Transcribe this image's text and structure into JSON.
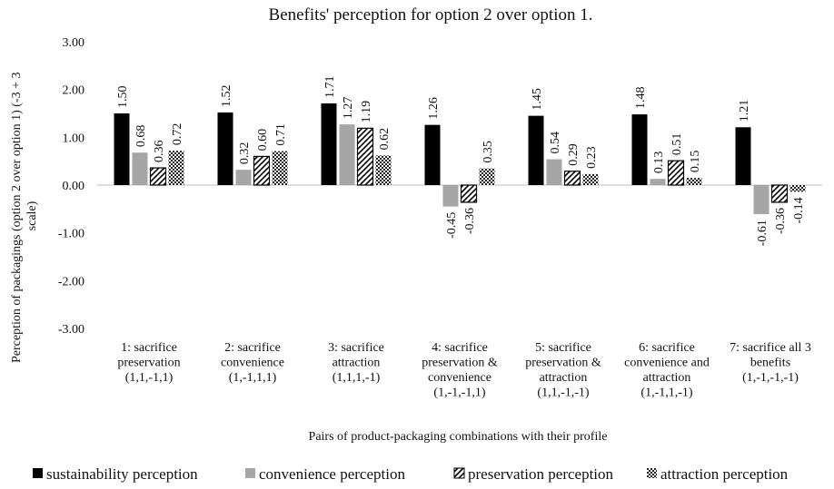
{
  "chart_data": {
    "type": "bar",
    "title": "Benefits' perception for option 2 over option 1.",
    "xlabel": "Pairs of product-packaging combinations with their profile",
    "ylabel": "Perception of packagings (option 2 over option 1) (-3 + 3 scale)",
    "ylim": [
      -3,
      3
    ],
    "yticks": [
      3,
      2,
      1,
      0,
      -1,
      -2,
      -3
    ],
    "ytick_labels": [
      "3.00",
      "2.00",
      "1.00",
      "0.00",
      "-1.00",
      "-2.00",
      "-3.00"
    ],
    "categories": [
      [
        "1: sacrifice",
        "preservation",
        "(1,1,-1,1)"
      ],
      [
        "2: sacrifice",
        "convenience",
        "(1,-1,1,1)"
      ],
      [
        "3: sacrifice",
        "attraction",
        "(1,1,1,-1)"
      ],
      [
        "4: sacrifice",
        "preservation &",
        "convenience",
        "(1,-1,-1,1)"
      ],
      [
        "5: sacrifice",
        "preservation &",
        "attraction",
        "(1,1,-1,-1)"
      ],
      [
        "6: sacrifice",
        "convenience and",
        "attraction",
        "(1,-1,1,-1)"
      ],
      [
        "7: sacrifice all 3",
        "benefits",
        "(1,-1,-1,-1)"
      ]
    ],
    "series": [
      {
        "name": "sustainability perception",
        "pattern": "solid-black",
        "values": [
          1.5,
          1.52,
          1.71,
          1.26,
          1.45,
          1.48,
          1.21
        ],
        "labels": [
          "1.50",
          "1.52",
          "1.71",
          "1.26",
          "1.45",
          "1.48",
          "1.21"
        ]
      },
      {
        "name": "convenience perception",
        "pattern": "solid-gray",
        "values": [
          0.68,
          0.32,
          1.27,
          -0.45,
          0.54,
          0.13,
          -0.61
        ],
        "labels": [
          "0.68",
          "0.32",
          "1.27",
          "-0.45",
          "0.54",
          "0.13",
          "-0.61"
        ]
      },
      {
        "name": "preservation perception",
        "pattern": "diagonal-hatch",
        "values": [
          0.36,
          0.6,
          1.19,
          -0.36,
          0.29,
          0.51,
          -0.36
        ],
        "labels": [
          "0.36",
          "0.60",
          "1.19",
          "-0.36",
          "0.29",
          "0.51",
          "-0.36"
        ]
      },
      {
        "name": "attraction perception",
        "pattern": "checker",
        "values": [
          0.72,
          0.71,
          0.62,
          0.35,
          0.23,
          0.15,
          -0.14
        ],
        "labels": [
          "0.72",
          "0.71",
          "0.62",
          "0.35",
          "0.23",
          "0.15",
          "-0.14"
        ]
      }
    ],
    "colors": {
      "sustainability": "#000000",
      "convenience": "#a6a6a6",
      "preservation": "#ffffff",
      "attraction": "#404040"
    },
    "legend_position": "bottom"
  }
}
